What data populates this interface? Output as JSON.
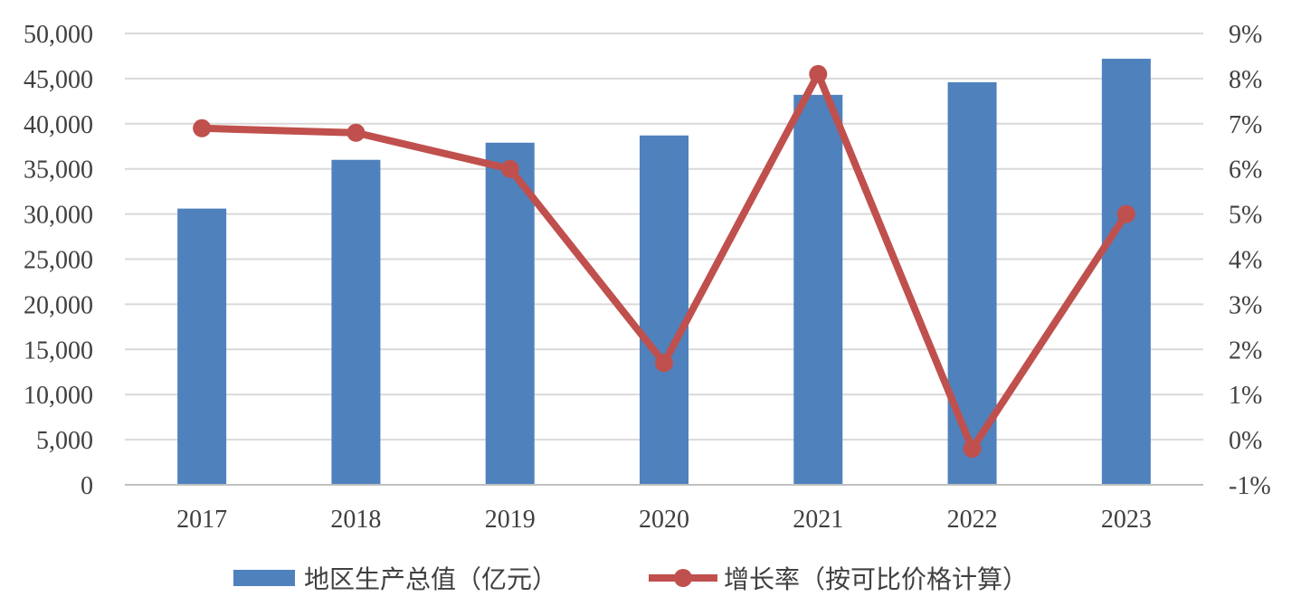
{
  "chart_data": {
    "type": "bar+line",
    "categories": [
      "2017",
      "2018",
      "2019",
      "2020",
      "2021",
      "2022",
      "2023"
    ],
    "series": [
      {
        "name": "地区生产总值（亿元）",
        "type": "bar",
        "axis": "left",
        "values": [
          30600,
          36000,
          37900,
          38700,
          43200,
          44600,
          47200
        ],
        "color": "#4F81BD"
      },
      {
        "name": "增长率（按可比价格计算）",
        "type": "line",
        "axis": "right",
        "values": [
          6.9,
          6.8,
          6.0,
          1.7,
          8.1,
          -0.2,
          5.0
        ],
        "color": "#C0504D"
      }
    ],
    "y_left": {
      "range": [
        0,
        50000
      ],
      "ticks": [
        "0",
        "5,000",
        "10,000",
        "15,000",
        "20,000",
        "25,000",
        "30,000",
        "35,000",
        "40,000",
        "45,000",
        "50,000"
      ]
    },
    "y_right": {
      "range": [
        -1,
        9
      ],
      "ticks": [
        "-1%",
        "0%",
        "1%",
        "2%",
        "3%",
        "4%",
        "5%",
        "6%",
        "7%",
        "8%",
        "9%"
      ]
    },
    "grid": true,
    "legend_position": "bottom-center"
  }
}
